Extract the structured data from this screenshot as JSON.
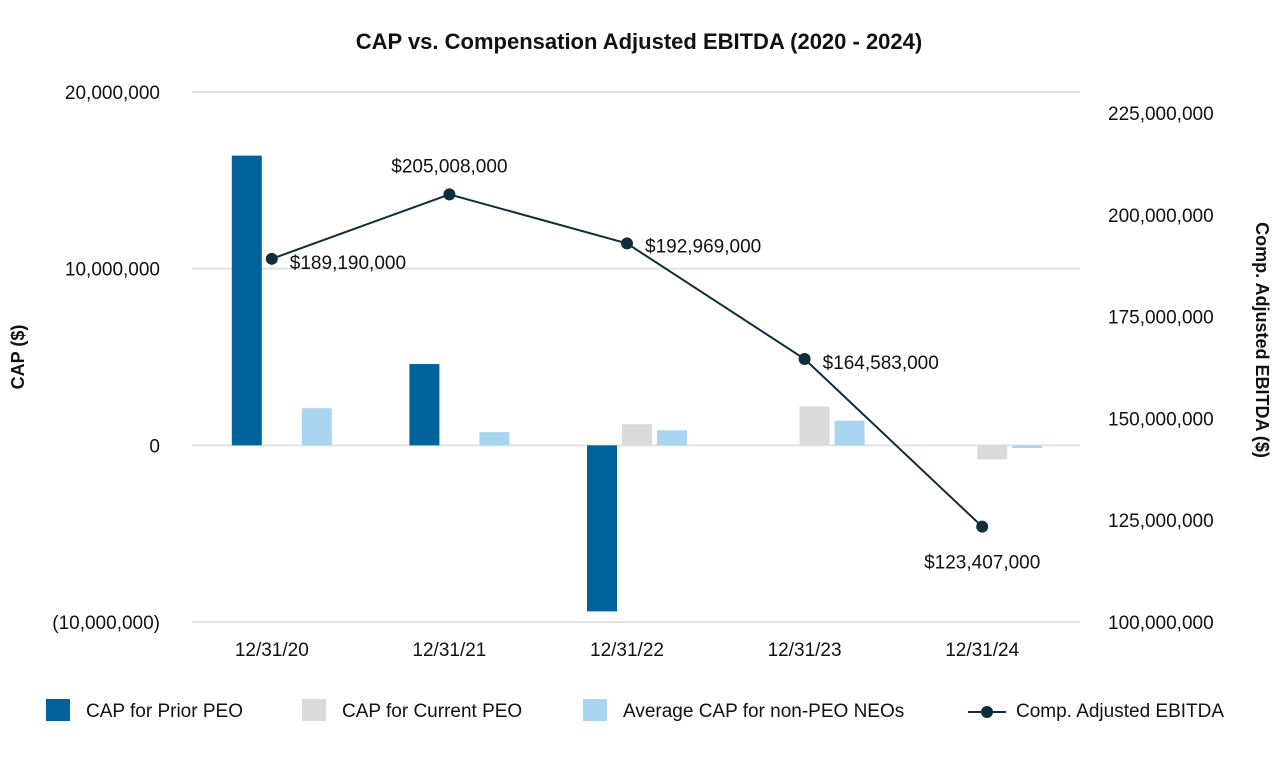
{
  "chart_data": {
    "type": "bar",
    "title": "CAP vs. Compensation Adjusted EBITDA (2020 - 2024)",
    "categories": [
      "12/31/20",
      "12/31/21",
      "12/31/22",
      "12/31/23",
      "12/31/24"
    ],
    "ylabel": "CAP ($)",
    "y2label": "Comp. Adjusted EBITDA ($)",
    "ylim": [
      -10000000,
      20000000
    ],
    "y2lim": [
      100000000,
      225000000
    ],
    "yticks": [
      {
        "value": 20000000,
        "label": "20,000,000"
      },
      {
        "value": 10000000,
        "label": "10,000,000"
      },
      {
        "value": 0,
        "label": "0"
      },
      {
        "value": -10000000,
        "label": "(10,000,000)"
      }
    ],
    "y2ticks": [
      {
        "value": 225000000,
        "label": "225,000,000"
      },
      {
        "value": 200000000,
        "label": "200,000,000"
      },
      {
        "value": 175000000,
        "label": "175,000,000"
      },
      {
        "value": 150000000,
        "label": "150,000,000"
      },
      {
        "value": 125000000,
        "label": "125,000,000"
      },
      {
        "value": 100000000,
        "label": "100,000,000"
      }
    ],
    "grid": true,
    "legend_position": "bottom",
    "series": [
      {
        "name": "CAP for Prior PEO",
        "kind": "bar",
        "color": "#00629b",
        "values": [
          16400000,
          4600000,
          -9400000,
          null,
          null
        ]
      },
      {
        "name": "CAP for Current PEO",
        "kind": "bar",
        "color": "#dadada",
        "values": [
          null,
          null,
          1200000,
          2200000,
          -800000
        ]
      },
      {
        "name": "Average CAP for non-PEO NEOs",
        "kind": "bar",
        "color": "#a8d5f0",
        "values": [
          2100000,
          750000,
          850000,
          1400000,
          -150000
        ]
      },
      {
        "name": "Comp. Adjusted EBITDA",
        "kind": "line",
        "axis": "right",
        "color": "#0f2d3d",
        "values": [
          189190000,
          205008000,
          192969000,
          164583000,
          123407000
        ],
        "labels": [
          "$189,190,000",
          "$205,008,000",
          "$192,969,000",
          "$164,583,000",
          "$123,407,000"
        ]
      }
    ]
  }
}
